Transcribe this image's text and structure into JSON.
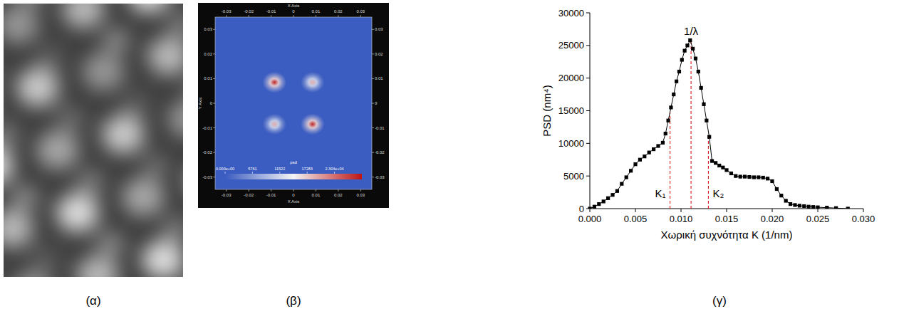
{
  "chart_data": [
    {
      "type": "image",
      "panel_label": "(α)"
    },
    {
      "type": "heatmap",
      "panel_label": "(β)",
      "x_label": "X Axis",
      "y_label": "Y Axis",
      "xlim": [
        -0.035,
        0.035
      ],
      "ylim": [
        -0.035,
        0.035
      ],
      "xticks": [
        -0.03,
        -0.02,
        -0.01,
        0,
        0.01,
        0.02,
        0.03
      ],
      "yticks": [
        -0.03,
        -0.02,
        -0.01,
        0,
        0.01,
        0.02,
        0.03
      ],
      "peaks": [
        {
          "x": -0.0085,
          "y": 0.0085,
          "value": 28000
        },
        {
          "x": 0.0085,
          "y": 0.0085,
          "value": 19000
        },
        {
          "x": -0.0085,
          "y": -0.0085,
          "value": 19000
        },
        {
          "x": 0.0085,
          "y": -0.0085,
          "value": 28000
        }
      ],
      "colorbar_label": "psd",
      "colorbar_range": [
        0,
        28805
      ],
      "colorbar_ticks": [
        {
          "value": 0,
          "label": "0.000e+00"
        },
        5761,
        11522,
        17283,
        {
          "value": 23044,
          "label": "2.304e+04"
        }
      ]
    },
    {
      "type": "line",
      "panel_label": "(γ)",
      "x_label": "Χωρική συχνότητα K (1/nm)",
      "y_label": "PSD (nm⁴)",
      "xlim": [
        0,
        0.03
      ],
      "ylim": [
        0,
        30000
      ],
      "xticks": [
        {
          "value": 0,
          "label": "0.000"
        },
        {
          "value": 0.005,
          "label": "0.005"
        },
        {
          "value": 0.01,
          "label": "0.010"
        },
        {
          "value": 0.015,
          "label": "0.015"
        },
        {
          "value": 0.02,
          "label": "0.020"
        },
        {
          "value": 0.025,
          "label": "0.025"
        },
        {
          "value": 0.03,
          "label": "0.030"
        }
      ],
      "yticks": [
        0,
        5000,
        10000,
        15000,
        20000,
        25000,
        30000
      ],
      "x": [
        0,
        0.0005,
        0.001,
        0.0015,
        0.002,
        0.0025,
        0.003,
        0.0035,
        0.004,
        0.0045,
        0.005,
        0.0055,
        0.006,
        0.0065,
        0.007,
        0.0075,
        0.008,
        0.0083,
        0.0086,
        0.0089,
        0.0092,
        0.0095,
        0.0098,
        0.0101,
        0.0104,
        0.0107,
        0.011,
        0.0113,
        0.0116,
        0.0119,
        0.0122,
        0.0125,
        0.0128,
        0.0131,
        0.0134,
        0.0138,
        0.0142,
        0.0146,
        0.015,
        0.0155,
        0.016,
        0.0165,
        0.017,
        0.0175,
        0.018,
        0.0185,
        0.019,
        0.0195,
        0.02,
        0.0205,
        0.021,
        0.0215,
        0.022,
        0.0225,
        0.023,
        0.0235,
        0.024,
        0.0245,
        0.025,
        0.026,
        0.027,
        0.0283
      ],
      "values": [
        0,
        300,
        700,
        1100,
        1600,
        2100,
        2700,
        3800,
        4800,
        5800,
        6800,
        7500,
        8000,
        8600,
        9100,
        9600,
        10100,
        11500,
        13500,
        15500,
        17500,
        19500,
        21000,
        22800,
        24200,
        25000,
        25800,
        24500,
        23000,
        21000,
        18500,
        16000,
        13500,
        11000,
        7300,
        7000,
        6600,
        6300,
        5900,
        5400,
        5000,
        4900,
        4900,
        4850,
        4800,
        4800,
        4750,
        4600,
        4200,
        3000,
        2000,
        1200,
        700,
        550,
        450,
        380,
        300,
        250,
        200,
        150,
        80,
        0
      ],
      "color": "#000000",
      "marker": "square",
      "line_style": "solid",
      "vlines": [
        {
          "x": 0.0088,
          "y": 14800,
          "label": "K₁",
          "color": "#e00000",
          "line_style": "dashed"
        },
        {
          "x": 0.0111,
          "y": 25800,
          "label": "1/λ",
          "color": "#e00000",
          "line_style": "dashed"
        },
        {
          "x": 0.013,
          "y": 11500,
          "label": "K₂",
          "color": "#e00000",
          "line_style": "dashed"
        }
      ]
    }
  ]
}
